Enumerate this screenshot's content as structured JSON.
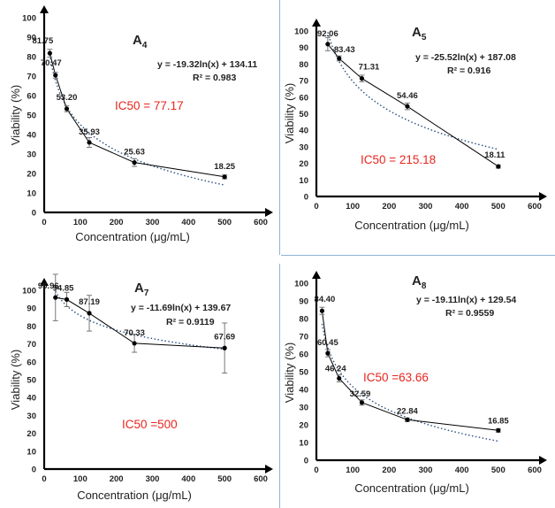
{
  "chart_data": [
    {
      "type": "scatter",
      "panel_title_letter": "A",
      "panel_title_sub": "4",
      "xlabel": "Concentration (μg/mL)",
      "ylabel": "Viability (%)",
      "xlim": [
        0,
        600
      ],
      "ylim": [
        0,
        100
      ],
      "xticks": [
        0,
        100,
        200,
        300,
        400,
        500,
        600
      ],
      "yticks": [
        0,
        10,
        20,
        30,
        40,
        50,
        60,
        70,
        80,
        90,
        100
      ],
      "x": [
        15.6,
        31.25,
        62.5,
        125,
        250,
        500
      ],
      "values": [
        81.75,
        70.47,
        53.2,
        35.93,
        25.63,
        18.25
      ],
      "point_labels": [
        "81.75",
        "70.47",
        "53.20",
        "35.93",
        "25.63",
        "18.25"
      ],
      "error": [
        2.0,
        1.5,
        1.5,
        2.5,
        2.0,
        1.0
      ],
      "trendline": {
        "a": -19.32,
        "b": 134.11
      },
      "equation": "y = -19.32ln(x) + 134.11",
      "r2_label": "R² = 0.983",
      "ic50_label": "IC50 = 77.17",
      "legend": "none",
      "grid": false
    },
    {
      "type": "scatter",
      "panel_title_letter": "A",
      "panel_title_sub": "5",
      "xlabel": "Concentration (μg/mL)",
      "ylabel": "Viability (%)",
      "xlim": [
        0,
        600
      ],
      "ylim": [
        0,
        100
      ],
      "xticks": [
        0,
        100,
        200,
        300,
        400,
        500,
        600
      ],
      "yticks": [
        0,
        10,
        20,
        30,
        40,
        50,
        60,
        70,
        80,
        90,
        100
      ],
      "x": [
        31.25,
        62.5,
        125,
        250,
        500
      ],
      "values": [
        92.06,
        83.43,
        71.31,
        54.46,
        18.11
      ],
      "point_labels": [
        "92.06",
        "83.43",
        "71.31",
        "54.46",
        "18.11"
      ],
      "error": [
        4.0,
        1.5,
        2.0,
        2.0,
        1.0
      ],
      "trendline": {
        "a": -25.52,
        "b": 187.08
      },
      "equation": "y = -25.52ln(x) + 187.08",
      "r2_label": "R² = 0.916",
      "ic50_label": "IC50 = 215.18",
      "legend": "none",
      "grid": false
    },
    {
      "type": "scatter",
      "panel_title_letter": "A",
      "panel_title_sub": "7",
      "xlabel": "Concentration (μg/mL)",
      "ylabel": "Viability (%)",
      "xlim": [
        0,
        600
      ],
      "ylim": [
        0,
        100
      ],
      "xticks": [
        0,
        100,
        200,
        300,
        400,
        500,
        600
      ],
      "yticks": [
        0,
        10,
        20,
        30,
        40,
        50,
        60,
        70,
        80,
        90,
        100
      ],
      "x": [
        31.25,
        62.5,
        125,
        250,
        500
      ],
      "values": [
        95.96,
        94.85,
        87.19,
        70.33,
        67.69
      ],
      "point_labels": [
        "95.96",
        "94.85",
        "87.19",
        "70.33",
        "67.69"
      ],
      "error": [
        13.0,
        4.0,
        10.0,
        5.0,
        14.0
      ],
      "trendline": {
        "a": -11.69,
        "b": 139.67
      },
      "equation": "y = -11.69ln(x) + 139.67",
      "r2_label": "R² = 0.9119",
      "ic50_label": "IC50 =500",
      "legend": "none",
      "grid": false
    },
    {
      "type": "scatter",
      "panel_title_letter": "A",
      "panel_title_sub": "8",
      "xlabel": "Concentration (μg/mL)",
      "ylabel": "Viability (%)",
      "xlim": [
        0,
        600
      ],
      "ylim": [
        0,
        100
      ],
      "xticks": [
        0,
        100,
        200,
        300,
        400,
        500,
        600
      ],
      "yticks": [
        0,
        10,
        20,
        30,
        40,
        50,
        60,
        70,
        80,
        90,
        100
      ],
      "x": [
        15.6,
        31.25,
        62.5,
        125,
        250,
        500
      ],
      "values": [
        84.4,
        60.45,
        46.24,
        32.59,
        22.84,
        16.85
      ],
      "point_labels": [
        "84.40",
        "60.45",
        "46.24",
        "32.59",
        "22.84",
        "16.85"
      ],
      "error": [
        2.0,
        2.0,
        2.0,
        1.5,
        1.0,
        1.0
      ],
      "trendline": {
        "a": -19.11,
        "b": 129.54
      },
      "equation": "y = -19.11ln(x) + 129.54",
      "r2_label": "R² = 0.9559",
      "ic50_label": "IC50 =63.66",
      "legend": "none",
      "grid": false
    }
  ]
}
